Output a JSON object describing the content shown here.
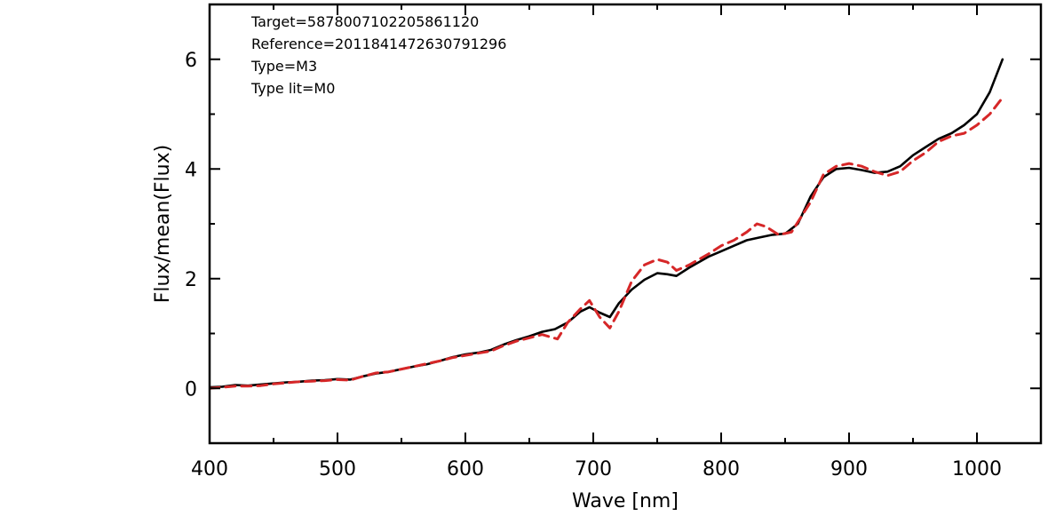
{
  "chart_data": {
    "type": "line",
    "xlabel": "Wave [nm]",
    "ylabel": "Flux/mean(Flux)",
    "xlim": [
      400,
      1050
    ],
    "ylim": [
      -1,
      7
    ],
    "xticks": [
      400,
      500,
      600,
      700,
      800,
      900,
      1000
    ],
    "yticks": [
      0,
      2,
      4,
      6
    ],
    "grid": false,
    "annotations": [
      "Target=5878007102205861120",
      "Reference=2011841472630791296",
      "Type=M3",
      "Type lit=M0"
    ],
    "series": [
      {
        "style": "solid",
        "color": "#000000",
        "x": [
          400,
          410,
          420,
          430,
          440,
          450,
          460,
          470,
          480,
          490,
          500,
          510,
          520,
          530,
          540,
          550,
          560,
          570,
          580,
          590,
          600,
          610,
          620,
          630,
          640,
          650,
          660,
          670,
          680,
          690,
          697,
          705,
          713,
          720,
          730,
          740,
          750,
          758,
          765,
          775,
          790,
          800,
          810,
          820,
          830,
          840,
          850,
          860,
          870,
          880,
          890,
          900,
          910,
          920,
          930,
          940,
          950,
          960,
          970,
          980,
          990,
          1000,
          1010,
          1020
        ],
        "y": [
          0.02,
          0.03,
          0.06,
          0.05,
          0.07,
          0.09,
          0.11,
          0.12,
          0.14,
          0.15,
          0.17,
          0.16,
          0.22,
          0.27,
          0.3,
          0.35,
          0.4,
          0.44,
          0.5,
          0.57,
          0.62,
          0.65,
          0.7,
          0.8,
          0.88,
          0.95,
          1.03,
          1.08,
          1.2,
          1.4,
          1.48,
          1.38,
          1.3,
          1.55,
          1.8,
          1.98,
          2.1,
          2.08,
          2.05,
          2.2,
          2.4,
          2.5,
          2.6,
          2.7,
          2.75,
          2.8,
          2.82,
          3.0,
          3.5,
          3.85,
          4.0,
          4.02,
          3.98,
          3.93,
          3.95,
          4.05,
          4.25,
          4.4,
          4.55,
          4.65,
          4.8,
          5.0,
          5.4,
          6.0
        ]
      },
      {
        "style": "dashed",
        "color": "#d62728",
        "x": [
          400,
          410,
          420,
          430,
          440,
          450,
          460,
          470,
          480,
          490,
          500,
          510,
          520,
          530,
          540,
          550,
          560,
          570,
          580,
          590,
          600,
          610,
          620,
          630,
          640,
          650,
          660,
          672,
          680,
          690,
          697,
          705,
          713,
          720,
          730,
          740,
          750,
          758,
          765,
          775,
          790,
          800,
          810,
          820,
          828,
          835,
          845,
          855,
          870,
          880,
          890,
          900,
          910,
          920,
          930,
          940,
          950,
          960,
          970,
          980,
          990,
          1000,
          1010,
          1020
        ],
        "y": [
          0.0,
          0.02,
          0.04,
          0.04,
          0.05,
          0.08,
          0.1,
          0.12,
          0.13,
          0.14,
          0.16,
          0.15,
          0.22,
          0.28,
          0.3,
          0.35,
          0.4,
          0.45,
          0.5,
          0.56,
          0.6,
          0.64,
          0.68,
          0.78,
          0.86,
          0.92,
          0.98,
          0.9,
          1.2,
          1.45,
          1.6,
          1.3,
          1.1,
          1.4,
          1.95,
          2.25,
          2.35,
          2.3,
          2.15,
          2.25,
          2.45,
          2.6,
          2.7,
          2.85,
          3.0,
          2.95,
          2.8,
          2.85,
          3.4,
          3.9,
          4.05,
          4.1,
          4.05,
          3.95,
          3.88,
          3.95,
          4.15,
          4.3,
          4.5,
          4.6,
          4.65,
          4.8,
          5.0,
          5.3
        ]
      }
    ]
  }
}
